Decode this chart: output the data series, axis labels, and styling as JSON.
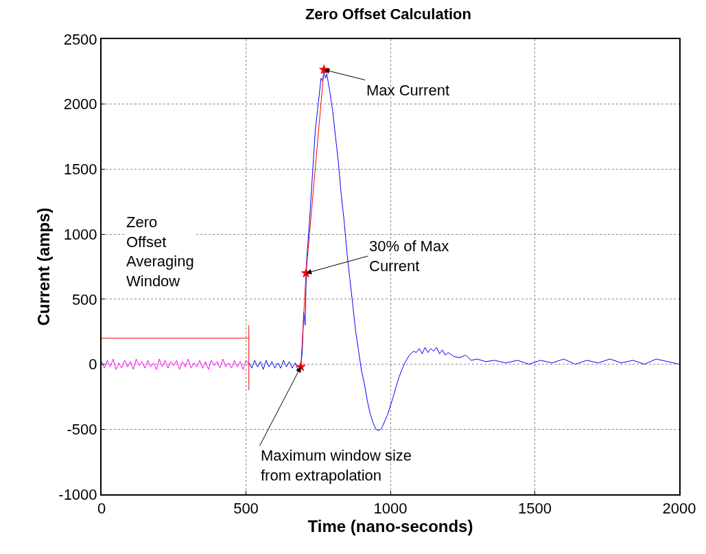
{
  "chart_data": {
    "type": "line",
    "title": "Zero Offset Calculation",
    "xlabel": "Time (nano-seconds)",
    "ylabel": "Current (amps)",
    "xlim": [
      0,
      2000
    ],
    "xticks": [
      0,
      500,
      1000,
      1500,
      2000
    ],
    "ylim": [
      -1000,
      2500
    ],
    "yticks": [
      -1000,
      -500,
      0,
      500,
      1000,
      1500,
      2000,
      2500
    ],
    "grid": true,
    "line_style": "solid",
    "series": [
      {
        "color": "#ff00ff",
        "marker": "none",
        "x": [
          0,
          10,
          20,
          30,
          40,
          50,
          60,
          70,
          80,
          90,
          100,
          110,
          120,
          130,
          140,
          150,
          160,
          170,
          180,
          190,
          200,
          210,
          220,
          230,
          240,
          250,
          260,
          270,
          280,
          290,
          300,
          310,
          320,
          330,
          340,
          350,
          360,
          370,
          380,
          390,
          400,
          410,
          420,
          430,
          440,
          450,
          460,
          470,
          480,
          490,
          500,
          510
        ],
        "values": [
          20,
          -30,
          30,
          -20,
          40,
          -40,
          10,
          -30,
          30,
          -20,
          20,
          -40,
          40,
          -10,
          20,
          -30,
          30,
          -20,
          10,
          -40,
          40,
          -20,
          30,
          -30,
          20,
          -10,
          30,
          -40,
          20,
          -20,
          40,
          -30,
          10,
          -20,
          30,
          -30,
          20,
          -40,
          30,
          -10,
          20,
          -30,
          40,
          -20,
          10,
          -30,
          30,
          -20,
          20,
          -40,
          30,
          0
        ]
      },
      {
        "color": "#0000ff",
        "marker": "none",
        "x": [
          510,
          520,
          530,
          540,
          550,
          560,
          570,
          580,
          590,
          600,
          610,
          620,
          630,
          640,
          650,
          660,
          670,
          680,
          690,
          695,
          700,
          705,
          710,
          720,
          730,
          740,
          750,
          760,
          765,
          770,
          775,
          780,
          790,
          800,
          810,
          820,
          830,
          840,
          850,
          860,
          870,
          880,
          890,
          900,
          910,
          920,
          930,
          940,
          950,
          960,
          970,
          980,
          990,
          1000,
          1010,
          1020,
          1030,
          1040,
          1050,
          1060,
          1070,
          1080,
          1090,
          1100,
          1110,
          1120,
          1130,
          1140,
          1150,
          1160,
          1170,
          1180,
          1190,
          1200,
          1220,
          1240,
          1260,
          1280,
          1300,
          1330,
          1360,
          1400,
          1440,
          1480,
          1520,
          1560,
          1600,
          1640,
          1680,
          1720,
          1760,
          1800,
          1840,
          1880,
          1920,
          1960,
          2000
        ],
        "values": [
          10,
          -30,
          30,
          -20,
          20,
          -40,
          30,
          -20,
          20,
          -30,
          10,
          -30,
          30,
          -20,
          20,
          -30,
          10,
          -40,
          -20,
          100,
          400,
          300,
          800,
          1100,
          1450,
          1800,
          2000,
          2200,
          2180,
          2250,
          2200,
          2230,
          2100,
          1950,
          1750,
          1550,
          1300,
          1100,
          850,
          650,
          450,
          250,
          100,
          -50,
          -150,
          -280,
          -380,
          -450,
          -500,
          -510,
          -490,
          -440,
          -390,
          -320,
          -250,
          -170,
          -100,
          -40,
          10,
          50,
          80,
          100,
          90,
          120,
          80,
          130,
          90,
          120,
          100,
          130,
          80,
          110,
          70,
          90,
          60,
          50,
          70,
          30,
          40,
          20,
          30,
          10,
          30,
          0,
          30,
          10,
          40,
          0,
          30,
          10,
          40,
          10,
          30,
          0,
          40,
          20,
          0
        ]
      },
      {
        "color": "#ff0000",
        "marker": "none",
        "x": [
          0,
          510,
          null,
          510,
          510
        ],
        "values": [
          200,
          200,
          null,
          300,
          -200
        ]
      },
      {
        "color": "#ff0000",
        "marker": "star",
        "x": [
          690,
          708,
          770
        ],
        "values": [
          -20,
          700,
          2265
        ]
      }
    ],
    "annotations": [
      {
        "text": "Max Current",
        "x": 770,
        "y": 2265
      },
      {
        "text": "30% of Max\nCurrent",
        "x": 708,
        "y": 700
      },
      {
        "text": "Maximum window size\nfrom extrapolation",
        "x": 690,
        "y": -20
      },
      "Zero\nOffset\nAveraging\nWindow"
    ]
  }
}
